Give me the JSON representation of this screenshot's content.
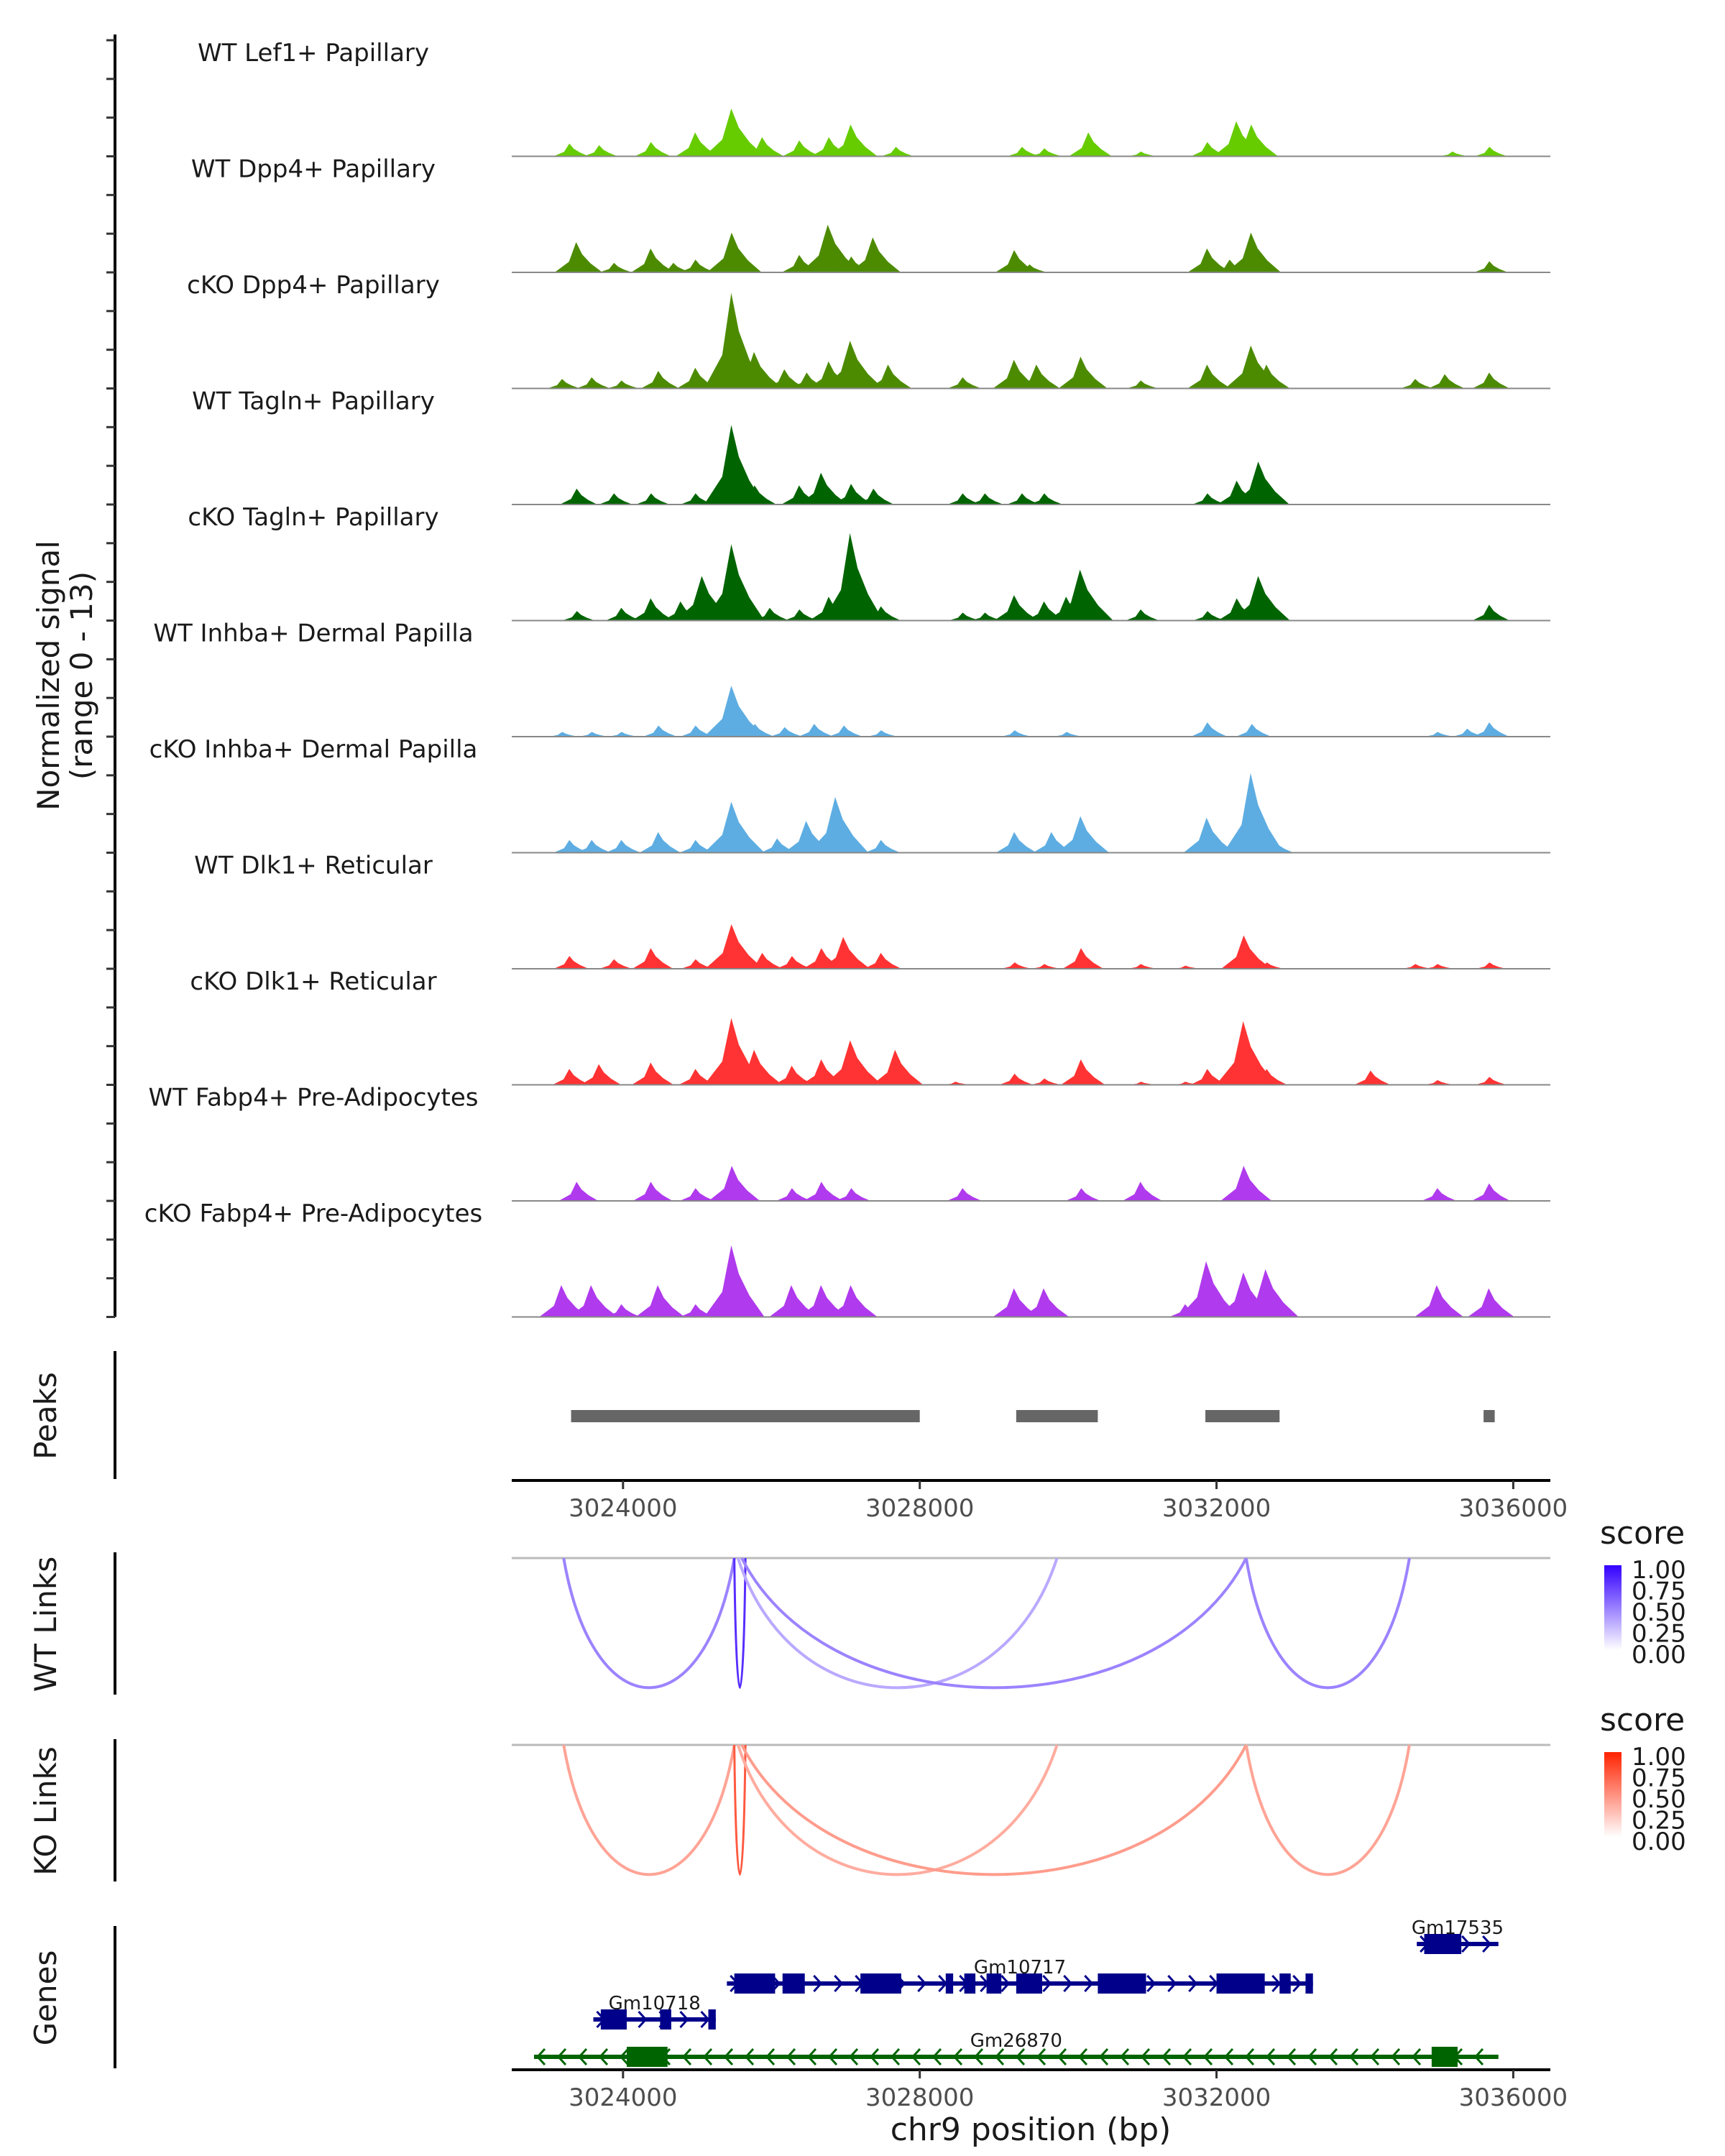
{
  "chart_data": {
    "type": "area",
    "title": "",
    "region": {
      "chrom": "chr9",
      "start": 3022500,
      "end": 3036500
    },
    "xlabel": "chr9 position (bp)",
    "x_ticks": [
      3024000,
      3028000,
      3032000,
      3036000
    ],
    "x_tick_labels": [
      "3024000",
      "3028000",
      "3032000",
      "3036000"
    ],
    "coverage": {
      "ylabel_line1": "Normalized signal",
      "ylabel_line2": "(range 0 - 13)",
      "ylim": [
        0,
        13
      ],
      "tracks": [
        {
          "name": "WT Lef1+ Papillary",
          "color": "#66CC00",
          "peaks": [
            [
              3023300,
              0.8
            ],
            [
              3023700,
              0.7
            ],
            [
              3024400,
              0.9
            ],
            [
              3025000,
              1.5
            ],
            [
              3025500,
              3.0
            ],
            [
              3025900,
              1.2
            ],
            [
              3026400,
              1.0
            ],
            [
              3026800,
              1.2
            ],
            [
              3027100,
              2.0
            ],
            [
              3027700,
              0.6
            ],
            [
              3029400,
              0.6
            ],
            [
              3029700,
              0.5
            ],
            [
              3030300,
              1.5
            ],
            [
              3031000,
              0.3
            ],
            [
              3031900,
              0.9
            ],
            [
              3032300,
              2.2
            ],
            [
              3032500,
              2.0
            ],
            [
              3035200,
              0.3
            ],
            [
              3035700,
              0.6
            ]
          ]
        },
        {
          "name": "WT Dpp4+ Papillary",
          "color": "#4C8B00",
          "peaks": [
            [
              3023400,
              1.9
            ],
            [
              3023900,
              0.6
            ],
            [
              3024400,
              1.5
            ],
            [
              3024700,
              0.6
            ],
            [
              3025000,
              0.8
            ],
            [
              3025500,
              2.5
            ],
            [
              3026400,
              1.1
            ],
            [
              3026800,
              3.0
            ],
            [
              3027100,
              1.0
            ],
            [
              3027400,
              2.2
            ],
            [
              3029300,
              1.4
            ],
            [
              3029500,
              0.5
            ],
            [
              3031900,
              1.5
            ],
            [
              3032200,
              0.8
            ],
            [
              3032500,
              2.5
            ],
            [
              3035700,
              0.7
            ]
          ]
        },
        {
          "name": "cKO Dpp4+ Papillary",
          "color": "#4C8B00",
          "peaks": [
            [
              3023200,
              0.6
            ],
            [
              3023600,
              0.7
            ],
            [
              3024000,
              0.5
            ],
            [
              3024500,
              1.1
            ],
            [
              3025000,
              1.3
            ],
            [
              3025500,
              6.0
            ],
            [
              3025800,
              2.3
            ],
            [
              3026200,
              1.2
            ],
            [
              3026500,
              1.0
            ],
            [
              3026800,
              1.7
            ],
            [
              3027100,
              3.0
            ],
            [
              3027600,
              1.5
            ],
            [
              3028600,
              0.7
            ],
            [
              3029300,
              1.8
            ],
            [
              3029600,
              1.5
            ],
            [
              3030200,
              2.0
            ],
            [
              3031000,
              0.5
            ],
            [
              3031900,
              1.5
            ],
            [
              3032500,
              2.7
            ],
            [
              3032700,
              1.5
            ],
            [
              3034700,
              0.6
            ],
            [
              3035100,
              0.9
            ],
            [
              3035700,
              1.0
            ]
          ]
        },
        {
          "name": "WT Tagln+ Papillary",
          "color": "#006400",
          "peaks": [
            [
              3023400,
              1.0
            ],
            [
              3023900,
              0.7
            ],
            [
              3024400,
              0.7
            ],
            [
              3025000,
              0.7
            ],
            [
              3025500,
              5.0
            ],
            [
              3025800,
              1.2
            ],
            [
              3026400,
              1.2
            ],
            [
              3026700,
              2.0
            ],
            [
              3027100,
              1.3
            ],
            [
              3027400,
              1.0
            ],
            [
              3028600,
              0.7
            ],
            [
              3028900,
              0.7
            ],
            [
              3029400,
              0.7
            ],
            [
              3029700,
              0.7
            ],
            [
              3031900,
              0.7
            ],
            [
              3032300,
              1.5
            ],
            [
              3032600,
              2.7
            ]
          ]
        },
        {
          "name": "cKO Tagln+ Papillary",
          "color": "#006400",
          "peaks": [
            [
              3023400,
              0.6
            ],
            [
              3024000,
              0.8
            ],
            [
              3024400,
              1.4
            ],
            [
              3024800,
              1.2
            ],
            [
              3025100,
              2.8
            ],
            [
              3025500,
              4.8
            ],
            [
              3026000,
              0.8
            ],
            [
              3026400,
              0.7
            ],
            [
              3026800,
              1.5
            ],
            [
              3027100,
              5.5
            ],
            [
              3027500,
              0.9
            ],
            [
              3028600,
              0.5
            ],
            [
              3028900,
              0.5
            ],
            [
              3029300,
              1.6
            ],
            [
              3029700,
              1.2
            ],
            [
              3030000,
              1.5
            ],
            [
              3030200,
              3.2
            ],
            [
              3031000,
              0.7
            ],
            [
              3031900,
              0.6
            ],
            [
              3032300,
              1.4
            ],
            [
              3032600,
              2.8
            ],
            [
              3035700,
              1.0
            ]
          ]
        },
        {
          "name": "WT Inhba+ Dermal Papilla",
          "color": "#5DADE2",
          "peaks": [
            [
              3023200,
              0.3
            ],
            [
              3023600,
              0.3
            ],
            [
              3024000,
              0.3
            ],
            [
              3024500,
              0.7
            ],
            [
              3025000,
              0.7
            ],
            [
              3025500,
              3.2
            ],
            [
              3025800,
              0.8
            ],
            [
              3026200,
              0.6
            ],
            [
              3026600,
              0.8
            ],
            [
              3027000,
              0.7
            ],
            [
              3027500,
              0.4
            ],
            [
              3029300,
              0.4
            ],
            [
              3030000,
              0.3
            ],
            [
              3031900,
              0.9
            ],
            [
              3032500,
              0.8
            ],
            [
              3035000,
              0.3
            ],
            [
              3035400,
              0.5
            ],
            [
              3035700,
              0.9
            ]
          ]
        },
        {
          "name": "cKO Inhba+ Dermal Papilla",
          "color": "#5DADE2",
          "peaks": [
            [
              3023300,
              0.8
            ],
            [
              3023600,
              0.8
            ],
            [
              3024000,
              0.8
            ],
            [
              3024500,
              1.3
            ],
            [
              3025000,
              0.8
            ],
            [
              3025500,
              3.2
            ],
            [
              3026100,
              0.9
            ],
            [
              3026500,
              2.0
            ],
            [
              3026900,
              3.5
            ],
            [
              3027500,
              0.8
            ],
            [
              3029300,
              1.3
            ],
            [
              3029800,
              1.3
            ],
            [
              3030200,
              2.3
            ],
            [
              3031900,
              2.2
            ],
            [
              3032500,
              5.0
            ],
            [
              3032800,
              0.8
            ]
          ]
        },
        {
          "name": "WT Dlk1+ Reticular",
          "color": "#FF3333",
          "peaks": [
            [
              3023300,
              0.8
            ],
            [
              3023900,
              0.6
            ],
            [
              3024400,
              1.3
            ],
            [
              3025000,
              0.6
            ],
            [
              3025500,
              2.8
            ],
            [
              3025900,
              1.0
            ],
            [
              3026300,
              0.8
            ],
            [
              3026700,
              1.3
            ],
            [
              3027000,
              2.0
            ],
            [
              3027500,
              1.0
            ],
            [
              3029300,
              0.4
            ],
            [
              3029700,
              0.3
            ],
            [
              3030200,
              1.3
            ],
            [
              3031000,
              0.3
            ],
            [
              3031600,
              0.2
            ],
            [
              3032400,
              2.1
            ],
            [
              3032700,
              0.4
            ],
            [
              3034700,
              0.3
            ],
            [
              3035000,
              0.3
            ],
            [
              3035700,
              0.4
            ]
          ]
        },
        {
          "name": "cKO Dlk1+ Reticular",
          "color": "#FF3333",
          "peaks": [
            [
              3023300,
              1.0
            ],
            [
              3023700,
              1.3
            ],
            [
              3024400,
              1.4
            ],
            [
              3025000,
              1.0
            ],
            [
              3025500,
              4.2
            ],
            [
              3025800,
              2.2
            ],
            [
              3026300,
              1.2
            ],
            [
              3026700,
              1.6
            ],
            [
              3027100,
              2.8
            ],
            [
              3027700,
              2.2
            ],
            [
              3028500,
              0.2
            ],
            [
              3029300,
              0.7
            ],
            [
              3029700,
              0.4
            ],
            [
              3030200,
              1.6
            ],
            [
              3031000,
              0.2
            ],
            [
              3031600,
              0.2
            ],
            [
              3031900,
              1.0
            ],
            [
              3032400,
              4.0
            ],
            [
              3032700,
              1.0
            ],
            [
              3034100,
              0.9
            ],
            [
              3035000,
              0.3
            ],
            [
              3035700,
              0.5
            ]
          ]
        },
        {
          "name": "WT Fabp4+ Pre-Adipocytes",
          "color": "#B03AED",
          "peaks": [
            [
              3023400,
              1.2
            ],
            [
              3024400,
              1.2
            ],
            [
              3025000,
              0.8
            ],
            [
              3025500,
              2.2
            ],
            [
              3026300,
              0.8
            ],
            [
              3026700,
              1.2
            ],
            [
              3027100,
              0.8
            ],
            [
              3028600,
              0.8
            ],
            [
              3030200,
              0.8
            ],
            [
              3031000,
              1.2
            ],
            [
              3032400,
              2.2
            ],
            [
              3035000,
              0.8
            ],
            [
              3035700,
              1.1
            ]
          ]
        },
        {
          "name": "cKO Fabp4+ Pre-Adipocytes",
          "color": "#B03AED",
          "peaks": [
            [
              3023200,
              2.0
            ],
            [
              3023600,
              2.0
            ],
            [
              3024000,
              0.8
            ],
            [
              3024500,
              2.0
            ],
            [
              3025000,
              0.8
            ],
            [
              3025500,
              4.5
            ],
            [
              3026300,
              2.0
            ],
            [
              3026700,
              2.0
            ],
            [
              3027100,
              2.0
            ],
            [
              3029300,
              1.8
            ],
            [
              3029700,
              1.8
            ],
            [
              3031600,
              0.8
            ],
            [
              3031900,
              3.5
            ],
            [
              3032400,
              2.8
            ],
            [
              3032700,
              3.0
            ],
            [
              3035000,
              2.0
            ],
            [
              3035700,
              1.8
            ]
          ]
        }
      ]
    },
    "peaks_track": {
      "label": "Peaks",
      "color": "#666666",
      "intervals": [
        [
          3023300,
          3028000
        ],
        [
          3029300,
          3030400
        ],
        [
          3031850,
          3032850
        ],
        [
          3035600,
          3035750
        ]
      ]
    },
    "links": [
      {
        "label": "WT Links",
        "legend_title": "score",
        "low_color": "#FFFFFF",
        "high_color": "#3300FF",
        "arcs": [
          [
            3023200,
            3025500,
            0.45
          ],
          [
            3025500,
            3025650,
            0.9
          ],
          [
            3025550,
            3029850,
            0.25
          ],
          [
            3025600,
            3032400,
            0.45
          ],
          [
            3032400,
            3034600,
            0.45
          ]
        ]
      },
      {
        "label": "KO Links",
        "legend_title": "score",
        "low_color": "#FFFFFF",
        "high_color": "#FF2200",
        "arcs": [
          [
            3023200,
            3025500,
            0.35
          ],
          [
            3025500,
            3025650,
            0.8
          ],
          [
            3025550,
            3029850,
            0.3
          ],
          [
            3025600,
            3032400,
            0.4
          ],
          [
            3032400,
            3034600,
            0.35
          ]
        ]
      }
    ],
    "legend_ticks": [
      "1.00",
      "0.75",
      "0.50",
      "0.25",
      "0.00"
    ],
    "genes": {
      "label": "Genes",
      "items": [
        {
          "name": "Gm17535",
          "strand": "+",
          "color": "#00008B",
          "row": 0,
          "start": 3034700,
          "end": 3035800,
          "exons": [
            [
              3034800,
              3035300
            ]
          ]
        },
        {
          "name": "Gm10717",
          "strand": "+",
          "color": "#00008B",
          "row": 1,
          "start": 3025400,
          "end": 3033300,
          "exons": [
            [
              3025500,
              3026050
            ],
            [
              3026150,
              3026450
            ],
            [
              3027200,
              3027750
            ],
            [
              3028350,
              3028450
            ],
            [
              3028600,
              3028750
            ],
            [
              3028900,
              3029100
            ],
            [
              3029300,
              3029650
            ],
            [
              3030400,
              3031050
            ],
            [
              3032000,
              3032650
            ],
            [
              3032850,
              3033000
            ],
            [
              3033200,
              3033300
            ]
          ]
        },
        {
          "name": "Gm10718",
          "strand": "+",
          "color": "#00008B",
          "row": 2,
          "start": 3023600,
          "end": 3025250,
          "exons": [
            [
              3023700,
              3024050
            ],
            [
              3024500,
              3024650
            ],
            [
              3025150,
              3025250
            ]
          ]
        },
        {
          "name": "Gm26870",
          "strand": "-",
          "color": "#006400",
          "row": 3,
          "start": 3022800,
          "end": 3035800,
          "exons": [
            [
              3024050,
              3024600
            ],
            [
              3034900,
              3035250
            ]
          ]
        }
      ]
    }
  }
}
